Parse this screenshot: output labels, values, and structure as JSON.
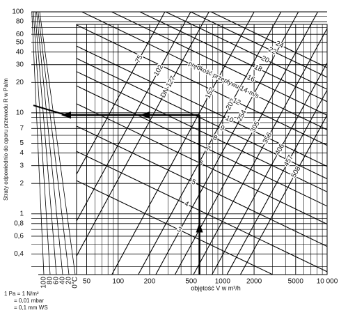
{
  "chart_data": {
    "type": "nomogram",
    "y_label": "Straty odpowiednio do oporu przewodu R w Pa/m",
    "x_label": "objętość V w m³/h",
    "log_x": true,
    "log_y": true,
    "grid": true,
    "color": "#000000",
    "xlim": [
      40,
      10000
    ],
    "ylim": [
      0.25,
      100
    ],
    "xticks": [
      50,
      100,
      200,
      500,
      1000,
      2000,
      5000,
      {
        "value": 10000,
        "label": "10 000"
      }
    ],
    "minor_xticks": [
      60,
      70,
      80,
      90,
      300,
      400,
      600,
      700,
      800,
      900,
      3000,
      4000,
      6000,
      7000,
      8000,
      9000
    ],
    "yticks": [
      {
        "value": 0.4,
        "label": "0,4"
      },
      {
        "value": 0.6,
        "label": "0,6"
      },
      {
        "value": 0.8,
        "label": "0,8"
      },
      1,
      2,
      3,
      4,
      5,
      7,
      10,
      20,
      30,
      40,
      50,
      60,
      80,
      100
    ],
    "minor_yticks": [
      0.3,
      0.5,
      0.7,
      0.9,
      6,
      8,
      9,
      70,
      90
    ],
    "temperature_ticks": [
      100,
      80,
      60,
      40,
      20,
      {
        "value": 0,
        "label": "0°C"
      }
    ],
    "diameter_prefix": "DN",
    "diameters": [
      {
        "name": "75",
        "x": [
          280,
          12
        ],
        "values": [
          100,
          0.25
        ]
      },
      {
        "name": "102",
        "x": [
          495,
          21
        ],
        "values": [
          100,
          0.25
        ]
      },
      {
        "name": "127",
        "x": [
          740,
          32
        ],
        "values": [
          100,
          0.25
        ]
      },
      {
        "name": "152",
        "x": [
          2000,
          87
        ],
        "values": [
          100,
          0.25
        ]
      },
      {
        "name": "203",
        "x": [
          3620,
          156
        ],
        "values": [
          100,
          0.25
        ]
      },
      {
        "name": "254",
        "x": [
          5310,
          229
        ],
        "values": [
          100,
          0.25
        ]
      },
      {
        "name": "305",
        "x": [
          8130,
          350
        ],
        "values": [
          100,
          0.25
        ]
      },
      {
        "name": "356",
        "x": [
          12200,
          526
        ],
        "values": [
          100,
          0.25
        ]
      },
      {
        "name": "406",
        "x": [
          18400,
          791
        ],
        "values": [
          100,
          0.25
        ]
      },
      {
        "name": "457",
        "x": [
          25500,
          1100
        ],
        "values": [
          100,
          0.25
        ]
      },
      {
        "name": "508",
        "x": [
          34400,
          1480
        ],
        "values": [
          100,
          0.25
        ]
      }
    ],
    "velocity_title": "prędkość przepływu",
    "velocity_unit": "m/s",
    "velocities": [
      {
        "name": "3",
        "x": [
          40,
          10000
        ],
        "values": [
          2.13,
          0.138
        ]
      },
      {
        "name": "4",
        "x": [
          40,
          10000
        ],
        "values": [
          4.15,
          0.267
        ]
      },
      {
        "name": "5",
        "x": [
          40,
          10000
        ],
        "values": [
          7.38,
          0.475
        ]
      },
      {
        "name": "6",
        "x": [
          40,
          10000
        ],
        "values": [
          12.3,
          0.79
        ]
      },
      {
        "name": "7",
        "x": [
          40,
          10000
        ],
        "values": [
          18.5,
          1.19
        ]
      },
      {
        "name": "8",
        "x": [
          40,
          10000
        ],
        "values": [
          25.6,
          1.65
        ]
      },
      {
        "name": "9",
        "x": [
          40,
          10000
        ],
        "values": [
          34.6,
          2.22
        ]
      },
      {
        "name": "10",
        "x": [
          40,
          10000
        ],
        "values": [
          45.8,
          2.95
        ]
      },
      {
        "name": "12",
        "x": [
          40,
          10000
        ],
        "values": [
          74.2,
          4.76
        ]
      },
      {
        "name": "14",
        "x": [
          40,
          10000
        ],
        "values": [
          106,
          6.79
        ]
      },
      {
        "name": "16",
        "x": [
          40,
          10000
        ],
        "values": [
          147,
          9.46
        ]
      },
      {
        "name": "18",
        "x": [
          40,
          10000
        ],
        "values": [
          200,
          12.9
        ]
      },
      {
        "name": "20",
        "x": [
          40,
          10000
        ],
        "values": [
          265,
          17.1
        ]
      },
      {
        "name": "22",
        "x": [
          40,
          10000
        ],
        "values": [
          349,
          22.5
        ]
      },
      {
        "name": "24",
        "x": [
          40,
          10000
        ],
        "values": [
          437,
          28
        ]
      }
    ],
    "example": {
      "x": 600,
      "values": 9.5
    },
    "notes": [
      "1 Pa = 1 N/m²",
      "= 0,01 mbar",
      "= 0,1 mm WS"
    ]
  }
}
